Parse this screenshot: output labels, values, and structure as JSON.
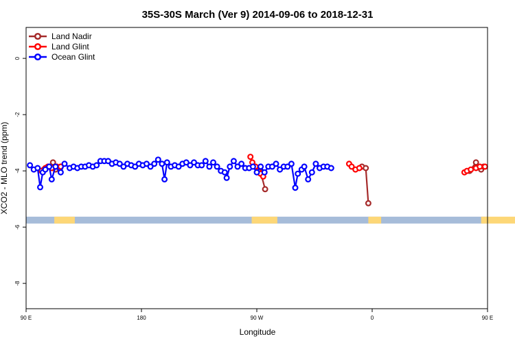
{
  "chart_data": {
    "type": "line",
    "title": "35S-30S March (Ver 9)   2014-09-06 to 2018-12-31",
    "xlabel": "Longitude",
    "ylabel": "XCO2 - MLO trend (ppm)",
    "xlim": [
      90,
      450
    ],
    "ylim": [
      -8.9,
      1.1
    ],
    "x_ticks": [
      {
        "value": 90,
        "label": "90 E"
      },
      {
        "value": 180,
        "label": "180"
      },
      {
        "value": 270,
        "label": "90 W"
      },
      {
        "value": 360,
        "label": "0"
      },
      {
        "value": 450,
        "label": "90 E"
      },
      {
        "value": 540,
        "label": "180"
      }
    ],
    "y_ticks": [
      {
        "value": 0,
        "label": "0"
      },
      {
        "value": -2,
        "label": "-2"
      },
      {
        "value": -4,
        "label": "-4"
      },
      {
        "value": -6,
        "label": "-6"
      },
      {
        "value": -8,
        "label": "-8"
      }
    ],
    "grid": false,
    "legend": "top-left",
    "land_strip": {
      "y_value": -5.75,
      "ocean_color": "#a6bcd9",
      "land_color": "#fdd777",
      "land_segments": [
        [
          112,
          128
        ],
        [
          266,
          286
        ],
        [
          357,
          367
        ],
        [
          445,
          450
        ],
        [
          450,
          476
        ]
      ]
    },
    "series": [
      {
        "name": "Land Nadir",
        "color": "#a52a2a",
        "segments": [
          [
            [
              102,
              -4.0
            ],
            [
              104,
              -3.95
            ],
            [
              108,
              -3.85
            ],
            [
              111,
              -3.7
            ],
            [
              113,
              -3.95
            ],
            [
              117,
              -3.85
            ]
          ],
          [
            [
              270.5,
              -3.9
            ],
            [
              273,
              -4.05
            ],
            [
              276.5,
              -4.65
            ]
          ],
          [
            [
              352,
              -3.85
            ],
            [
              355,
              -3.9
            ],
            [
              357,
              -5.15
            ]
          ],
          [
            [
              436,
              -4.0
            ],
            [
              441,
              -3.7
            ],
            [
              445,
              -3.95
            ],
            [
              447,
              -3.85
            ]
          ]
        ]
      },
      {
        "name": "Land Glint",
        "color": "#ff0000",
        "segments": [
          [
            [
              102,
              -4.0
            ],
            [
              105,
              -3.9
            ],
            [
              107,
              -3.85
            ],
            [
              110,
              -3.9
            ],
            [
              114,
              -3.85
            ],
            [
              117,
              -3.85
            ]
          ],
          [
            [
              265,
              -3.5
            ],
            [
              266.5,
              -3.7
            ],
            [
              269,
              -3.85
            ],
            [
              271,
              -4.0
            ],
            [
              273,
              -4.1
            ],
            [
              275,
              -4.2
            ]
          ],
          [
            [
              342,
              -3.75
            ],
            [
              344,
              -3.85
            ],
            [
              347,
              -3.95
            ],
            [
              350,
              -3.9
            ]
          ],
          [
            [
              432,
              -4.05
            ],
            [
              434,
              -4.0
            ],
            [
              437,
              -3.95
            ],
            [
              441,
              -3.9
            ],
            [
              444,
              -3.85
            ],
            [
              448,
              -3.85
            ]
          ]
        ]
      },
      {
        "name": "Ocean Glint",
        "color": "#0000ff",
        "segments": [
          [
            [
              93,
              -3.8
            ],
            [
              96,
              -3.95
            ],
            [
              99,
              -3.9
            ],
            [
              101,
              -4.58
            ],
            [
              103,
              -4.05
            ],
            [
              105,
              -3.95
            ],
            [
              108,
              -3.85
            ],
            [
              110,
              -4.3
            ],
            [
              113,
              -3.85
            ],
            [
              117,
              -4.05
            ],
            [
              120,
              -3.75
            ],
            [
              124,
              -3.9
            ],
            [
              127,
              -3.85
            ],
            [
              130,
              -3.9
            ],
            [
              133,
              -3.85
            ],
            [
              136,
              -3.85
            ],
            [
              139,
              -3.8
            ],
            [
              142,
              -3.85
            ],
            [
              145,
              -3.8
            ],
            [
              148,
              -3.65
            ],
            [
              151,
              -3.65
            ],
            [
              154,
              -3.65
            ],
            [
              157,
              -3.75
            ],
            [
              160,
              -3.7
            ],
            [
              163,
              -3.75
            ],
            [
              166,
              -3.85
            ],
            [
              169,
              -3.75
            ],
            [
              172,
              -3.8
            ],
            [
              175,
              -3.85
            ],
            [
              178,
              -3.75
            ],
            [
              181,
              -3.8
            ],
            [
              184,
              -3.75
            ],
            [
              187,
              -3.85
            ],
            [
              190,
              -3.75
            ],
            [
              193,
              -3.6
            ],
            [
              196,
              -3.75
            ],
            [
              198,
              -4.3
            ],
            [
              200,
              -3.7
            ],
            [
              203,
              -3.85
            ],
            [
              206,
              -3.8
            ],
            [
              209,
              -3.85
            ],
            [
              212,
              -3.75
            ],
            [
              215,
              -3.7
            ],
            [
              218,
              -3.8
            ],
            [
              221,
              -3.7
            ],
            [
              224,
              -3.8
            ],
            [
              227,
              -3.8
            ],
            [
              230,
              -3.65
            ],
            [
              233,
              -3.85
            ],
            [
              236,
              -3.7
            ],
            [
              239,
              -3.85
            ],
            [
              242,
              -4.0
            ],
            [
              245,
              -4.05
            ],
            [
              246.5,
              -4.25
            ],
            [
              249,
              -3.85
            ],
            [
              252,
              -3.65
            ],
            [
              255,
              -3.85
            ],
            [
              258,
              -3.75
            ],
            [
              261,
              -3.9
            ],
            [
              264,
              -3.9
            ],
            [
              267,
              -3.85
            ],
            [
              270,
              -4.05
            ],
            [
              273,
              -3.85
            ],
            [
              276,
              -4.05
            ],
            [
              279,
              -3.85
            ],
            [
              282,
              -3.85
            ],
            [
              285,
              -3.75
            ],
            [
              288,
              -3.95
            ],
            [
              291,
              -3.85
            ],
            [
              294,
              -3.85
            ],
            [
              297,
              -3.75
            ],
            [
              300,
              -4.6
            ],
            [
              302,
              -4.1
            ],
            [
              305,
              -3.95
            ],
            [
              307,
              -3.85
            ],
            [
              310,
              -4.3
            ],
            [
              313,
              -4.05
            ],
            [
              316,
              -3.75
            ],
            [
              319,
              -3.9
            ],
            [
              322,
              -3.85
            ],
            [
              325,
              -3.85
            ],
            [
              328,
              -3.9
            ]
          ]
        ]
      }
    ]
  }
}
